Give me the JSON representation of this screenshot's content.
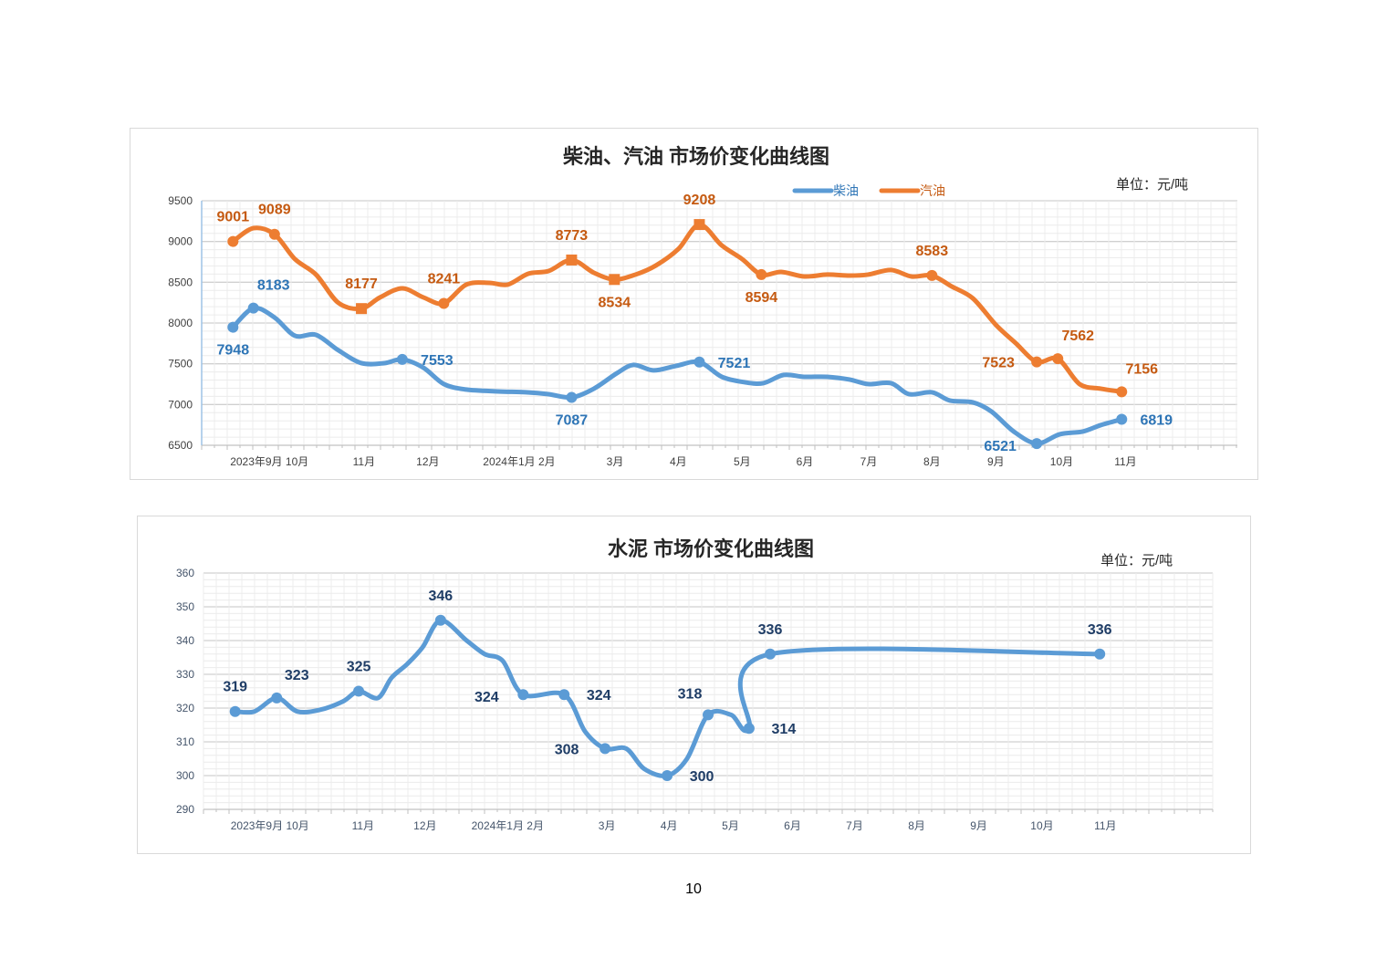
{
  "page_number": "10",
  "chart_data": [
    {
      "type": "line",
      "title": "柴油、汽油  市场价变化曲线图",
      "unit_label": "单位：元/吨",
      "xlabel": "",
      "ylabel": "",
      "ylim": [
        6500,
        9500
      ],
      "ystep": 500,
      "yticks": [
        "6500",
        "7000",
        "7500",
        "8000",
        "8500",
        "9000",
        "9500"
      ],
      "xlim": [
        0,
        16.21
      ],
      "xticks": [
        {
          "x": 1.06,
          "label": "2023年9月 10月"
        },
        {
          "x": 2.54,
          "label": "11月"
        },
        {
          "x": 3.54,
          "label": "12月"
        },
        {
          "x": 4.97,
          "label": "2024年1月 2月"
        },
        {
          "x": 6.47,
          "label": "3月"
        },
        {
          "x": 7.46,
          "label": "4月"
        },
        {
          "x": 8.46,
          "label": "5月"
        },
        {
          "x": 9.44,
          "label": "6月"
        },
        {
          "x": 10.44,
          "label": "7月"
        },
        {
          "x": 11.43,
          "label": "8月"
        },
        {
          "x": 12.43,
          "label": "9月"
        },
        {
          "x": 13.46,
          "label": "10月"
        },
        {
          "x": 14.46,
          "label": "11月"
        }
      ],
      "grid": true,
      "legend_position": "top-center",
      "series": [
        {
          "name": "柴油",
          "color": "#5b9bd5",
          "label_color": "#2e75b6",
          "x": [
            0.49,
            0.81,
            1.14,
            1.46,
            1.79,
            2.14,
            2.5,
            2.86,
            3.14,
            3.47,
            3.79,
            4.14,
            4.64,
            5.07,
            5.43,
            5.79,
            6.14,
            6.5,
            6.76,
            7.07,
            7.43,
            7.79,
            8.14,
            8.5,
            8.79,
            9.11,
            9.43,
            9.79,
            10.14,
            10.43,
            10.79,
            11.07,
            11.43,
            11.71,
            12.07,
            12.36,
            12.71,
            13.07,
            13.43,
            13.79,
            14.07,
            14.4
          ],
          "y": [
            7948,
            8183,
            8068,
            7844,
            7855,
            7665,
            7508,
            7508,
            7553,
            7452,
            7251,
            7184,
            7161,
            7150,
            7127,
            7087,
            7195,
            7385,
            7486,
            7419,
            7475,
            7521,
            7340,
            7273,
            7262,
            7363,
            7340,
            7340,
            7307,
            7251,
            7262,
            7127,
            7150,
            7049,
            7027,
            6915,
            6669,
            6521,
            6635,
            6669,
            6747,
            6819
          ],
          "markers": [
            {
              "i": 0,
              "label": "7948",
              "pos": "below",
              "shape": "circle"
            },
            {
              "i": 1,
              "label": "8183",
              "pos": "above-right",
              "shape": "circle"
            },
            {
              "i": 8,
              "label": "7553",
              "pos": "right",
              "shape": "circle"
            },
            {
              "i": 15,
              "label": "7087",
              "pos": "below",
              "shape": "circle"
            },
            {
              "i": 21,
              "label": "7521",
              "pos": "right",
              "shape": "circle"
            },
            {
              "i": 37,
              "label": "6521",
              "pos": "left-low",
              "shape": "circle"
            },
            {
              "i": 41,
              "label": "6819",
              "pos": "right",
              "shape": "circle"
            }
          ]
        },
        {
          "name": "汽油",
          "color": "#ed7d31",
          "label_color": "#c55a11",
          "x": [
            0.49,
            0.81,
            1.14,
            1.46,
            1.79,
            2.14,
            2.5,
            2.79,
            3.14,
            3.47,
            3.79,
            4.14,
            4.5,
            4.79,
            5.11,
            5.43,
            5.79,
            6.14,
            6.46,
            6.79,
            7.11,
            7.46,
            7.79,
            8.14,
            8.46,
            8.76,
            9.07,
            9.43,
            9.79,
            10.14,
            10.43,
            10.79,
            11.11,
            11.43,
            11.74,
            12.07,
            12.43,
            12.74,
            13.07,
            13.4,
            13.74,
            14.07,
            14.4
          ],
          "y": [
            9001,
            9164,
            9089,
            8784,
            8594,
            8247,
            8177,
            8314,
            8426,
            8314,
            8241,
            8471,
            8493,
            8471,
            8605,
            8638,
            8773,
            8616,
            8534,
            8594,
            8706,
            8907,
            9208,
            8952,
            8784,
            8594,
            8627,
            8571,
            8594,
            8582,
            8594,
            8650,
            8571,
            8583,
            8448,
            8303,
            7978,
            7754,
            7523,
            7562,
            7251,
            7195,
            7156
          ],
          "markers": [
            {
              "i": 0,
              "label": "9001",
              "pos": "above",
              "shape": "circle"
            },
            {
              "i": 2,
              "label": "9089",
              "pos": "above",
              "shape": "circle"
            },
            {
              "i": 6,
              "label": "8177",
              "pos": "above",
              "shape": "square"
            },
            {
              "i": 10,
              "label": "8241",
              "pos": "above",
              "shape": "circle"
            },
            {
              "i": 16,
              "label": "8773",
              "pos": "above",
              "shape": "square"
            },
            {
              "i": 18,
              "label": "8534",
              "pos": "below",
              "shape": "square"
            },
            {
              "i": 22,
              "label": "9208",
              "pos": "above",
              "shape": "square"
            },
            {
              "i": 25,
              "label": "8594",
              "pos": "below",
              "shape": "circle"
            },
            {
              "i": 33,
              "label": "8583",
              "pos": "above",
              "shape": "circle"
            },
            {
              "i": 38,
              "label": "7523",
              "pos": "left",
              "shape": "circle"
            },
            {
              "i": 39,
              "label": "7562",
              "pos": "above-right",
              "shape": "circle"
            },
            {
              "i": 42,
              "label": "7156",
              "pos": "above-right",
              "shape": "circle"
            }
          ]
        }
      ]
    },
    {
      "type": "line",
      "title": "水泥  市场价变化曲线图",
      "unit_label": "单位：元/吨",
      "xlabel": "",
      "ylabel": "",
      "ylim": [
        290,
        360
      ],
      "ystep": 10,
      "yticks": [
        "290",
        "300",
        "310",
        "320",
        "330",
        "340",
        "350",
        "360"
      ],
      "xlim": [
        0,
        16.26
      ],
      "xticks": [
        {
          "x": 1.07,
          "label": "2023年9月 10月"
        },
        {
          "x": 2.57,
          "label": "11月"
        },
        {
          "x": 3.57,
          "label": "12月"
        },
        {
          "x": 4.9,
          "label": "2024年1月 2月"
        },
        {
          "x": 6.5,
          "label": "3月"
        },
        {
          "x": 7.5,
          "label": "4月"
        },
        {
          "x": 8.49,
          "label": "5月"
        },
        {
          "x": 9.49,
          "label": "6月"
        },
        {
          "x": 10.49,
          "label": "7月"
        },
        {
          "x": 11.49,
          "label": "8月"
        },
        {
          "x": 12.49,
          "label": "9月"
        },
        {
          "x": 13.51,
          "label": "10月"
        },
        {
          "x": 14.53,
          "label": "11月"
        }
      ],
      "grid": true,
      "series": [
        {
          "name": "水泥",
          "color": "#5b9bd5",
          "label_color": "#1f3d66",
          "x": [
            0.51,
            0.82,
            1.18,
            1.51,
            1.88,
            2.25,
            2.5,
            2.81,
            3.03,
            3.28,
            3.53,
            3.82,
            4.24,
            4.53,
            4.82,
            5.15,
            5.81,
            6.15,
            6.47,
            6.81,
            7.1,
            7.47,
            7.79,
            8.13,
            8.5,
            8.79,
            9.13,
            14.44
          ],
          "y": [
            319,
            319,
            323,
            319,
            319.5,
            322,
            325,
            323,
            329,
            333,
            338,
            346,
            340,
            336,
            334,
            324,
            324,
            313,
            308,
            308,
            302,
            300,
            305,
            318,
            318,
            314,
            336,
            336
          ],
          "markers": [
            {
              "i": 0,
              "label": "319",
              "pos": "above",
              "shape": "circle"
            },
            {
              "i": 2,
              "label": "323",
              "pos": "above-right",
              "shape": "circle"
            },
            {
              "i": 6,
              "label": "325",
              "pos": "above",
              "shape": "circle"
            },
            {
              "i": 11,
              "label": "346",
              "pos": "above",
              "shape": "circle"
            },
            {
              "i": 15,
              "label": "324",
              "pos": "left-low",
              "shape": "circle"
            },
            {
              "i": 16,
              "label": "324",
              "pos": "right",
              "shape": "circle"
            },
            {
              "i": 18,
              "label": "308",
              "pos": "left",
              "shape": "circle"
            },
            {
              "i": 21,
              "label": "300",
              "pos": "right",
              "shape": "circle"
            },
            {
              "i": 23,
              "label": "318",
              "pos": "above-left",
              "shape": "circle"
            },
            {
              "i": 25,
              "label": "314",
              "pos": "right",
              "shape": "circle"
            },
            {
              "i": 26,
              "label": "336",
              "pos": "above",
              "shape": "circle"
            },
            {
              "i": 27,
              "label": "336",
              "pos": "above",
              "shape": "circle"
            }
          ]
        }
      ]
    }
  ]
}
